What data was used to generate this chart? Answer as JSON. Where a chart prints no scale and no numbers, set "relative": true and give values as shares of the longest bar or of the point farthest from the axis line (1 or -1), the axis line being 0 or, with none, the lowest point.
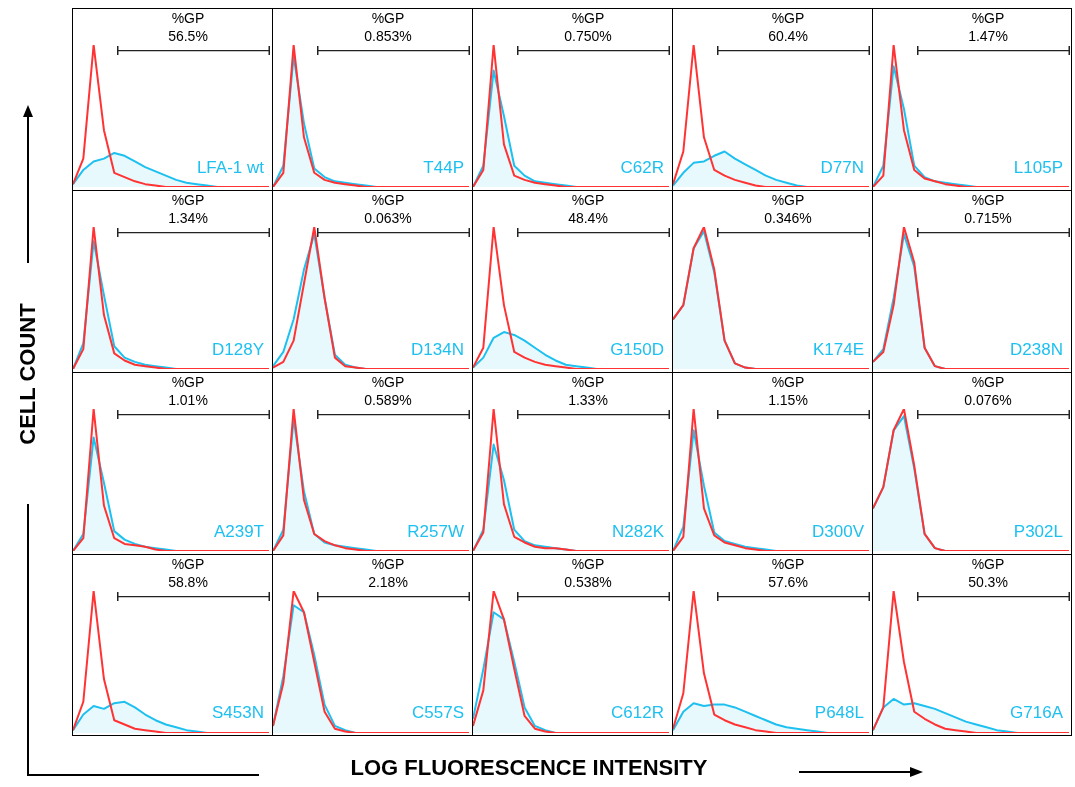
{
  "chart_data": [
    {
      "type": "line",
      "relative": true,
      "tick_labels": false,
      "title": "LFA-1 wt",
      "annotations": [
        "%GP",
        "56.5%"
      ],
      "categories": [
        null,
        null,
        null,
        null,
        null,
        null,
        null,
        null,
        null,
        null,
        null,
        null,
        null,
        null,
        null,
        null,
        null,
        null,
        null,
        null
      ],
      "series": [
        {
          "type": "area",
          "color": "#1ec0f0",
          "values": [
            0.02,
            0.12,
            0.18,
            0.2,
            0.24,
            0.22,
            0.18,
            0.14,
            0.11,
            0.08,
            0.05,
            0.03,
            0.02,
            0.01,
            0,
            0,
            0,
            0,
            0,
            0
          ]
        },
        {
          "color": "#ff3333",
          "values": [
            0.02,
            0.2,
            1,
            0.4,
            0.1,
            0.07,
            0.04,
            0.02,
            0.01,
            0,
            0,
            0,
            0,
            0,
            0,
            0,
            0,
            0,
            0,
            0
          ]
        }
      ]
    },
    {
      "type": "line",
      "relative": true,
      "tick_labels": false,
      "title": "T44P",
      "annotations": [
        "%GP",
        "0.853%"
      ],
      "categories": [
        null,
        null,
        null,
        null,
        null,
        null,
        null,
        null,
        null,
        null,
        null,
        null,
        null,
        null,
        null,
        null,
        null,
        null,
        null,
        null
      ],
      "series": [
        {
          "type": "area",
          "color": "#1ec0f0",
          "values": [
            0,
            0.15,
            0.92,
            0.45,
            0.13,
            0.07,
            0.04,
            0.03,
            0.02,
            0.01,
            0,
            0,
            0,
            0,
            0,
            0,
            0,
            0,
            0,
            0
          ]
        },
        {
          "color": "#ff3333",
          "values": [
            0,
            0.1,
            1,
            0.35,
            0.1,
            0.05,
            0.03,
            0.02,
            0.01,
            0,
            0,
            0,
            0,
            0,
            0,
            0,
            0,
            0,
            0,
            0
          ]
        }
      ]
    },
    {
      "type": "line",
      "relative": true,
      "tick_labels": false,
      "title": "C62R",
      "annotations": [
        "%GP",
        "0.750%"
      ],
      "categories": [
        null,
        null,
        null,
        null,
        null,
        null,
        null,
        null,
        null,
        null,
        null,
        null,
        null,
        null,
        null,
        null,
        null,
        null,
        null,
        null
      ],
      "series": [
        {
          "type": "area",
          "color": "#1ec0f0",
          "values": [
            0,
            0.15,
            0.82,
            0.5,
            0.15,
            0.08,
            0.04,
            0.03,
            0.02,
            0.01,
            0,
            0,
            0,
            0,
            0,
            0,
            0,
            0,
            0,
            0
          ]
        },
        {
          "color": "#ff3333",
          "values": [
            0,
            0.12,
            1,
            0.3,
            0.08,
            0.05,
            0.03,
            0.02,
            0.01,
            0,
            0,
            0,
            0,
            0,
            0,
            0,
            0,
            0,
            0,
            0
          ]
        }
      ]
    },
    {
      "type": "line",
      "relative": true,
      "tick_labels": false,
      "title": "D77N",
      "annotations": [
        "%GP",
        "60.4%"
      ],
      "categories": [
        null,
        null,
        null,
        null,
        null,
        null,
        null,
        null,
        null,
        null,
        null,
        null,
        null,
        null,
        null,
        null,
        null,
        null,
        null,
        null
      ],
      "series": [
        {
          "type": "area",
          "color": "#1ec0f0",
          "values": [
            0.01,
            0.1,
            0.17,
            0.18,
            0.22,
            0.25,
            0.2,
            0.16,
            0.12,
            0.08,
            0.05,
            0.03,
            0.01,
            0,
            0,
            0,
            0,
            0,
            0,
            0
          ]
        },
        {
          "color": "#ff3333",
          "values": [
            0.02,
            0.25,
            1,
            0.35,
            0.12,
            0.08,
            0.05,
            0.03,
            0.01,
            0,
            0,
            0,
            0,
            0,
            0,
            0,
            0,
            0,
            0,
            0
          ]
        }
      ]
    },
    {
      "type": "line",
      "relative": true,
      "tick_labels": false,
      "title": "L105P",
      "annotations": [
        "%GP",
        "1.47%"
      ],
      "categories": [
        null,
        null,
        null,
        null,
        null,
        null,
        null,
        null,
        null,
        null,
        null,
        null,
        null,
        null,
        null,
        null,
        null,
        null,
        null,
        null
      ],
      "series": [
        {
          "type": "area",
          "color": "#1ec0f0",
          "values": [
            0,
            0.15,
            0.85,
            0.55,
            0.15,
            0.07,
            0.04,
            0.03,
            0.02,
            0.01,
            0,
            0,
            0,
            0,
            0,
            0,
            0,
            0,
            0,
            0
          ]
        },
        {
          "color": "#ff3333",
          "values": [
            0,
            0.08,
            1,
            0.4,
            0.12,
            0.06,
            0.04,
            0.02,
            0.01,
            0,
            0,
            0,
            0,
            0,
            0,
            0,
            0,
            0,
            0,
            0
          ]
        }
      ]
    },
    {
      "type": "line",
      "relative": true,
      "tick_labels": false,
      "title": "D128Y",
      "annotations": [
        "%GP",
        "1.34%"
      ],
      "categories": [
        null,
        null,
        null,
        null,
        null,
        null,
        null,
        null,
        null,
        null,
        null,
        null,
        null,
        null,
        null,
        null,
        null,
        null,
        null,
        null
      ],
      "series": [
        {
          "type": "area",
          "color": "#1ec0f0",
          "values": [
            0,
            0.18,
            0.9,
            0.52,
            0.16,
            0.08,
            0.05,
            0.03,
            0.02,
            0.01,
            0,
            0,
            0,
            0,
            0,
            0,
            0,
            0,
            0,
            0
          ]
        },
        {
          "color": "#ff3333",
          "values": [
            0,
            0.14,
            1,
            0.38,
            0.11,
            0.06,
            0.03,
            0.02,
            0.01,
            0,
            0,
            0,
            0,
            0,
            0,
            0,
            0,
            0,
            0,
            0
          ]
        }
      ]
    },
    {
      "type": "line",
      "relative": true,
      "tick_labels": false,
      "title": "D134N",
      "annotations": [
        "%GP",
        "0.063%"
      ],
      "categories": [
        null,
        null,
        null,
        null,
        null,
        null,
        null,
        null,
        null,
        null,
        null,
        null,
        null,
        null,
        null,
        null,
        null,
        null,
        null,
        null
      ],
      "series": [
        {
          "type": "area",
          "color": "#1ec0f0",
          "values": [
            0.02,
            0.12,
            0.35,
            0.7,
            0.95,
            0.5,
            0.1,
            0.03,
            0.01,
            0,
            0,
            0,
            0,
            0,
            0,
            0,
            0,
            0,
            0,
            0
          ]
        },
        {
          "color": "#ff3333",
          "values": [
            0.01,
            0.05,
            0.2,
            0.6,
            1,
            0.5,
            0.08,
            0.02,
            0.01,
            0,
            0,
            0,
            0,
            0,
            0,
            0,
            0,
            0,
            0,
            0
          ]
        }
      ]
    },
    {
      "type": "line",
      "relative": true,
      "tick_labels": false,
      "title": "G150D",
      "annotations": [
        "%GP",
        "48.4%"
      ],
      "categories": [
        null,
        null,
        null,
        null,
        null,
        null,
        null,
        null,
        null,
        null,
        null,
        null,
        null,
        null,
        null,
        null,
        null,
        null,
        null,
        null
      ],
      "series": [
        {
          "type": "area",
          "color": "#1ec0f0",
          "values": [
            0.01,
            0.08,
            0.22,
            0.26,
            0.24,
            0.2,
            0.15,
            0.1,
            0.06,
            0.03,
            0.02,
            0.01,
            0,
            0,
            0,
            0,
            0,
            0,
            0,
            0
          ]
        },
        {
          "color": "#ff3333",
          "values": [
            0.01,
            0.15,
            1,
            0.45,
            0.12,
            0.08,
            0.05,
            0.03,
            0.02,
            0.01,
            0,
            0,
            0,
            0,
            0,
            0,
            0,
            0,
            0,
            0
          ]
        }
      ]
    },
    {
      "type": "line",
      "relative": true,
      "tick_labels": false,
      "title": "K174E",
      "annotations": [
        "%GP",
        "0.346%"
      ],
      "categories": [
        null,
        null,
        null,
        null,
        null,
        null,
        null,
        null,
        null,
        null,
        null,
        null,
        null,
        null,
        null,
        null,
        null,
        null,
        null,
        null
      ],
      "series": [
        {
          "type": "area",
          "color": "#1ec0f0",
          "values": [
            0.35,
            0.45,
            0.85,
            0.97,
            0.68,
            0.2,
            0.04,
            0.01,
            0,
            0,
            0,
            0,
            0,
            0,
            0,
            0,
            0,
            0,
            0,
            0
          ]
        },
        {
          "color": "#ff3333",
          "values": [
            0.35,
            0.45,
            0.85,
            1,
            0.7,
            0.2,
            0.04,
            0.01,
            0,
            0,
            0,
            0,
            0,
            0,
            0,
            0,
            0,
            0,
            0,
            0
          ]
        }
      ]
    },
    {
      "type": "line",
      "relative": true,
      "tick_labels": false,
      "title": "D238N",
      "annotations": [
        "%GP",
        "0.715%"
      ],
      "categories": [
        null,
        null,
        null,
        null,
        null,
        null,
        null,
        null,
        null,
        null,
        null,
        null,
        null,
        null,
        null,
        null,
        null,
        null,
        null,
        null
      ],
      "series": [
        {
          "type": "area",
          "color": "#1ec0f0",
          "values": [
            0.05,
            0.14,
            0.5,
            0.95,
            0.72,
            0.15,
            0.02,
            0,
            0,
            0,
            0,
            0,
            0,
            0,
            0,
            0,
            0,
            0,
            0,
            0
          ]
        },
        {
          "color": "#ff3333",
          "values": [
            0.05,
            0.12,
            0.45,
            1,
            0.75,
            0.15,
            0.02,
            0,
            0,
            0,
            0,
            0,
            0,
            0,
            0,
            0,
            0,
            0,
            0,
            0
          ]
        }
      ]
    },
    {
      "type": "line",
      "relative": true,
      "tick_labels": false,
      "title": "A239T",
      "annotations": [
        "%GP",
        "1.01%"
      ],
      "categories": [
        null,
        null,
        null,
        null,
        null,
        null,
        null,
        null,
        null,
        null,
        null,
        null,
        null,
        null,
        null,
        null,
        null,
        null,
        null,
        null
      ],
      "series": [
        {
          "type": "area",
          "color": "#1ec0f0",
          "values": [
            0,
            0.12,
            0.8,
            0.48,
            0.14,
            0.08,
            0.05,
            0.03,
            0.02,
            0.01,
            0,
            0,
            0,
            0,
            0,
            0,
            0,
            0,
            0,
            0
          ]
        },
        {
          "color": "#ff3333",
          "values": [
            0,
            0.09,
            1,
            0.32,
            0.09,
            0.05,
            0.04,
            0.03,
            0.01,
            0,
            0,
            0,
            0,
            0,
            0,
            0,
            0,
            0,
            0,
            0
          ]
        }
      ]
    },
    {
      "type": "line",
      "relative": true,
      "tick_labels": false,
      "title": "R257W",
      "annotations": [
        "%GP",
        "0.589%"
      ],
      "categories": [
        null,
        null,
        null,
        null,
        null,
        null,
        null,
        null,
        null,
        null,
        null,
        null,
        null,
        null,
        null,
        null,
        null,
        null,
        null,
        null
      ],
      "series": [
        {
          "type": "area",
          "color": "#1ec0f0",
          "values": [
            0,
            0.15,
            0.93,
            0.42,
            0.12,
            0.06,
            0.04,
            0.03,
            0.02,
            0.01,
            0,
            0,
            0,
            0,
            0,
            0,
            0,
            0,
            0,
            0
          ]
        },
        {
          "color": "#ff3333",
          "values": [
            0,
            0.11,
            1,
            0.36,
            0.12,
            0.07,
            0.04,
            0.02,
            0.01,
            0,
            0,
            0,
            0,
            0,
            0,
            0,
            0,
            0,
            0,
            0
          ]
        }
      ]
    },
    {
      "type": "line",
      "relative": true,
      "tick_labels": false,
      "title": "N282K",
      "annotations": [
        "%GP",
        "1.33%"
      ],
      "categories": [
        null,
        null,
        null,
        null,
        null,
        null,
        null,
        null,
        null,
        null,
        null,
        null,
        null,
        null,
        null,
        null,
        null,
        null,
        null,
        null
      ],
      "series": [
        {
          "type": "area",
          "color": "#1ec0f0",
          "values": [
            0,
            0.15,
            0.75,
            0.5,
            0.15,
            0.07,
            0.04,
            0.03,
            0.02,
            0.01,
            0,
            0,
            0,
            0,
            0,
            0,
            0,
            0,
            0,
            0
          ]
        },
        {
          "color": "#ff3333",
          "values": [
            0,
            0.13,
            1,
            0.33,
            0.1,
            0.06,
            0.03,
            0.02,
            0.02,
            0.01,
            0,
            0,
            0,
            0,
            0,
            0,
            0,
            0,
            0,
            0
          ]
        }
      ]
    },
    {
      "type": "line",
      "relative": true,
      "tick_labels": false,
      "title": "D300V",
      "annotations": [
        "%GP",
        "1.15%"
      ],
      "categories": [
        null,
        null,
        null,
        null,
        null,
        null,
        null,
        null,
        null,
        null,
        null,
        null,
        null,
        null,
        null,
        null,
        null,
        null,
        null,
        null
      ],
      "series": [
        {
          "type": "area",
          "color": "#1ec0f0",
          "values": [
            0,
            0.17,
            0.85,
            0.46,
            0.13,
            0.07,
            0.05,
            0.03,
            0.02,
            0.01,
            0,
            0,
            0,
            0,
            0,
            0,
            0,
            0,
            0,
            0
          ]
        },
        {
          "color": "#ff3333",
          "values": [
            0,
            0.1,
            1,
            0.3,
            0.11,
            0.06,
            0.04,
            0.02,
            0.01,
            0,
            0,
            0,
            0,
            0,
            0,
            0,
            0,
            0,
            0,
            0
          ]
        }
      ]
    },
    {
      "type": "line",
      "relative": true,
      "tick_labels": false,
      "title": "P302L",
      "annotations": [
        "%GP",
        "0.076%"
      ],
      "categories": [
        null,
        null,
        null,
        null,
        null,
        null,
        null,
        null,
        null,
        null,
        null,
        null,
        null,
        null,
        null,
        null,
        null,
        null,
        null,
        null
      ],
      "series": [
        {
          "type": "area",
          "color": "#1ec0f0",
          "values": [
            0.3,
            0.45,
            0.85,
            0.95,
            0.58,
            0.12,
            0.02,
            0,
            0,
            0,
            0,
            0,
            0,
            0,
            0,
            0,
            0,
            0,
            0,
            0
          ]
        },
        {
          "color": "#ff3333",
          "values": [
            0.3,
            0.45,
            0.85,
            1,
            0.6,
            0.12,
            0.02,
            0,
            0,
            0,
            0,
            0,
            0,
            0,
            0,
            0,
            0,
            0,
            0,
            0
          ]
        }
      ]
    },
    {
      "type": "line",
      "relative": true,
      "tick_labels": false,
      "title": "S453N",
      "annotations": [
        "%GP",
        "58.8%"
      ],
      "ylabel": "CELL COUNT",
      "categories": [
        null,
        null,
        null,
        null,
        null,
        null,
        null,
        null,
        null,
        null,
        null,
        null,
        null,
        null,
        null,
        null,
        null,
        null,
        null,
        null
      ],
      "series": [
        {
          "type": "area",
          "color": "#1ec0f0",
          "values": [
            0.02,
            0.13,
            0.19,
            0.17,
            0.21,
            0.22,
            0.18,
            0.13,
            0.09,
            0.06,
            0.04,
            0.02,
            0.01,
            0,
            0,
            0,
            0,
            0,
            0,
            0
          ]
        },
        {
          "color": "#ff3333",
          "values": [
            0.02,
            0.22,
            1,
            0.38,
            0.09,
            0.06,
            0.03,
            0.02,
            0.01,
            0,
            0,
            0,
            0,
            0,
            0,
            0,
            0,
            0,
            0,
            0
          ]
        }
      ]
    },
    {
      "type": "line",
      "relative": true,
      "tick_labels": false,
      "title": "C557S",
      "annotations": [
        "%GP",
        "2.18%"
      ],
      "categories": [
        null,
        null,
        null,
        null,
        null,
        null,
        null,
        null,
        null,
        null,
        null,
        null,
        null,
        null,
        null,
        null,
        null,
        null,
        null,
        null
      ],
      "series": [
        {
          "type": "area",
          "color": "#1ec0f0",
          "values": [
            0.05,
            0.4,
            0.9,
            0.85,
            0.55,
            0.2,
            0.05,
            0.02,
            0,
            0,
            0,
            0,
            0,
            0,
            0,
            0,
            0,
            0,
            0,
            0
          ]
        },
        {
          "color": "#ff3333",
          "values": [
            0.05,
            0.35,
            1,
            0.85,
            0.5,
            0.15,
            0.03,
            0.01,
            0,
            0,
            0,
            0,
            0,
            0,
            0,
            0,
            0,
            0,
            0,
            0
          ]
        }
      ]
    },
    {
      "type": "line",
      "relative": true,
      "tick_labels": false,
      "title": "C612R",
      "annotations": [
        "%GP",
        "0.538%"
      ],
      "xlabel": "LOG FLUORESCENCE INTENSITY",
      "categories": [
        null,
        null,
        null,
        null,
        null,
        null,
        null,
        null,
        null,
        null,
        null,
        null,
        null,
        null,
        null,
        null,
        null,
        null,
        null,
        null
      ],
      "series": [
        {
          "type": "area",
          "color": "#1ec0f0",
          "values": [
            0.1,
            0.45,
            0.85,
            0.8,
            0.5,
            0.18,
            0.05,
            0.02,
            0,
            0,
            0,
            0,
            0,
            0,
            0,
            0,
            0,
            0,
            0,
            0
          ]
        },
        {
          "color": "#ff3333",
          "values": [
            0.05,
            0.3,
            1,
            0.8,
            0.45,
            0.12,
            0.03,
            0.01,
            0,
            0,
            0,
            0,
            0,
            0,
            0,
            0,
            0,
            0,
            0,
            0
          ]
        }
      ]
    },
    {
      "type": "line",
      "relative": true,
      "tick_labels": false,
      "title": "P648L",
      "annotations": [
        "%GP",
        "57.6%"
      ],
      "categories": [
        null,
        null,
        null,
        null,
        null,
        null,
        null,
        null,
        null,
        null,
        null,
        null,
        null,
        null,
        null,
        null,
        null,
        null,
        null,
        null
      ],
      "series": [
        {
          "type": "area",
          "color": "#1ec0f0",
          "values": [
            0.02,
            0.15,
            0.21,
            0.19,
            0.2,
            0.2,
            0.18,
            0.15,
            0.12,
            0.09,
            0.06,
            0.04,
            0.03,
            0.02,
            0.01,
            0,
            0,
            0,
            0,
            0
          ]
        },
        {
          "color": "#ff3333",
          "values": [
            0.03,
            0.28,
            1,
            0.42,
            0.13,
            0.09,
            0.06,
            0.04,
            0.02,
            0.01,
            0,
            0,
            0,
            0,
            0,
            0,
            0,
            0,
            0,
            0
          ]
        }
      ]
    },
    {
      "type": "line",
      "relative": true,
      "tick_labels": false,
      "title": "G716A",
      "annotations": [
        "%GP",
        "50.3%"
      ],
      "categories": [
        null,
        null,
        null,
        null,
        null,
        null,
        null,
        null,
        null,
        null,
        null,
        null,
        null,
        null,
        null,
        null,
        null,
        null,
        null,
        null
      ],
      "series": [
        {
          "type": "area",
          "color": "#1ec0f0",
          "values": [
            0.02,
            0.18,
            0.24,
            0.2,
            0.21,
            0.19,
            0.17,
            0.14,
            0.11,
            0.08,
            0.06,
            0.04,
            0.02,
            0.01,
            0,
            0,
            0,
            0,
            0,
            0
          ]
        },
        {
          "color": "#ff3333",
          "values": [
            0.02,
            0.18,
            1,
            0.5,
            0.15,
            0.1,
            0.06,
            0.03,
            0.02,
            0.01,
            0,
            0,
            0,
            0,
            0,
            0,
            0,
            0,
            0,
            0
          ]
        }
      ]
    }
  ]
}
